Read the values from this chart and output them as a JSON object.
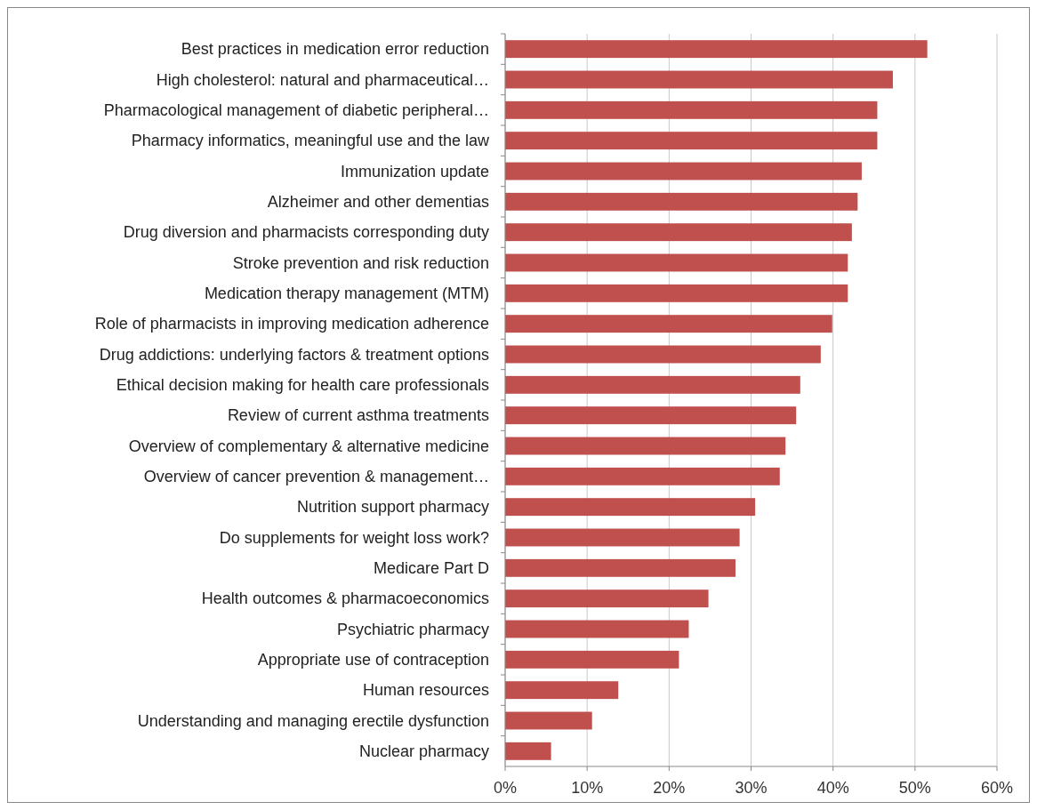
{
  "chart_data": {
    "type": "bar",
    "orientation": "horizontal",
    "categories": [
      "Best practices in medication error reduction",
      "High cholesterol: natural and pharmaceutical…",
      "Pharmacological management of diabetic peripheral…",
      "Pharmacy informatics, meaningful use and the law",
      "Immunization update",
      "Alzheimer and other dementias",
      "Drug diversion and pharmacists corresponding duty",
      "Stroke prevention and risk reduction",
      "Medication therapy management (MTM)",
      "Role of pharmacists in improving medication adherence",
      "Drug addictions: underlying factors & treatment options",
      "Ethical decision making for health care professionals",
      "Review of current asthma treatments",
      "Overview of complementary & alternative medicine",
      "Overview of cancer prevention & management…",
      "Nutrition support pharmacy",
      "Do supplements for weight loss work?",
      "Medicare Part D",
      "Health outcomes & pharmacoeconomics",
      "Psychiatric pharmacy",
      "Appropriate use of contraception",
      "Human resources",
      "Understanding and managing erectile dysfunction",
      "Nuclear pharmacy"
    ],
    "values": [
      51.5,
      47.3,
      45.4,
      45.4,
      43.5,
      43.0,
      42.3,
      41.8,
      41.8,
      39.9,
      38.5,
      36.0,
      35.5,
      34.2,
      33.5,
      30.5,
      28.6,
      28.1,
      24.8,
      22.4,
      21.2,
      13.8,
      10.6,
      5.6
    ],
    "color": "#c0504d",
    "xlim": [
      0,
      60
    ],
    "xticks": [
      {
        "value": 0,
        "label": "0%"
      },
      {
        "value": 10,
        "label": "10%"
      },
      {
        "value": 20,
        "label": "20%"
      },
      {
        "value": 30,
        "label": "30%"
      },
      {
        "value": 40,
        "label": "40%"
      },
      {
        "value": 50,
        "label": "50%"
      },
      {
        "value": 60,
        "label": "60%"
      }
    ],
    "grid": "x"
  }
}
